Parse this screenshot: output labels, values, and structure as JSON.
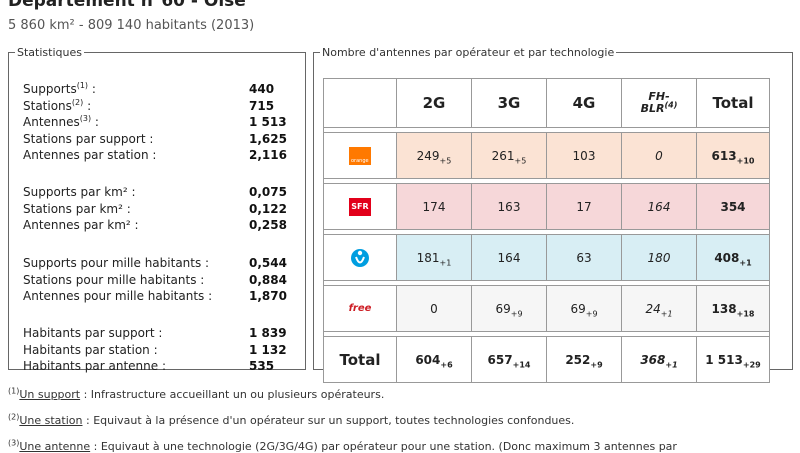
{
  "header": {
    "title": "Département n°60 - Oise",
    "subtitle": "5 860 km² - 809 140 habitants (2013)"
  },
  "stats": {
    "legend": "Statistiques",
    "groups": [
      [
        {
          "label": "Supports",
          "sup": "(1)",
          "suffix": " :",
          "value": "440"
        },
        {
          "label": "Stations",
          "sup": "(2)",
          "suffix": " :",
          "value": "715"
        },
        {
          "label": "Antennes",
          "sup": "(3)",
          "suffix": " :",
          "value": "1 513"
        },
        {
          "label": "Stations par support :",
          "sup": "",
          "suffix": "",
          "value": "1,625"
        },
        {
          "label": "Antennes par station :",
          "sup": "",
          "suffix": "",
          "value": "2,116"
        }
      ],
      [
        {
          "label": "Supports par km² :",
          "sup": "",
          "suffix": "",
          "value": "0,075"
        },
        {
          "label": "Stations par km² :",
          "sup": "",
          "suffix": "",
          "value": "0,122"
        },
        {
          "label": "Antennes par km² :",
          "sup": "",
          "suffix": "",
          "value": "0,258"
        }
      ],
      [
        {
          "label": "Supports pour mille habitants :",
          "sup": "",
          "suffix": "",
          "value": "0,544"
        },
        {
          "label": "Stations pour mille habitants :",
          "sup": "",
          "suffix": "",
          "value": "0,884"
        },
        {
          "label": "Antennes pour mille habitants :",
          "sup": "",
          "suffix": "",
          "value": "1,870"
        }
      ],
      [
        {
          "label": "Habitants par support :",
          "sup": "",
          "suffix": "",
          "value": "1 839"
        },
        {
          "label": "Habitants par station :",
          "sup": "",
          "suffix": "",
          "value": "1 132"
        },
        {
          "label": "Habitants par antenne :",
          "sup": "",
          "suffix": "",
          "value": "535"
        }
      ]
    ]
  },
  "antennas": {
    "legend": "Nombre d'antennes par opérateur et par technologie",
    "headers": {
      "c2g": "2G",
      "c3g": "3G",
      "c4g": "4G",
      "fh": "FH-",
      "fh2": "BLR",
      "fh_sup": "(4)",
      "total": "Total"
    },
    "rows": [
      {
        "op": "orange",
        "logo": "orange-logo",
        "v2g": "249",
        "v2g_sub": "+5",
        "v3g": "261",
        "v3g_sub": "+5",
        "v4g": "103",
        "v4g_sub": "",
        "fh": "0",
        "fh_sub": "",
        "total": "613",
        "total_sub": "+10"
      },
      {
        "op": "sfr",
        "logo": "sfr-logo",
        "logo_text": "SFR",
        "v2g": "174",
        "v2g_sub": "",
        "v3g": "163",
        "v3g_sub": "",
        "v4g": "17",
        "v4g_sub": "",
        "fh": "164",
        "fh_sub": "",
        "total": "354",
        "total_sub": ""
      },
      {
        "op": "bouygues",
        "logo": "bouygues-logo",
        "v2g": "181",
        "v2g_sub": "+1",
        "v3g": "164",
        "v3g_sub": "",
        "v4g": "63",
        "v4g_sub": "",
        "fh": "180",
        "fh_sub": "",
        "total": "408",
        "total_sub": "+1"
      },
      {
        "op": "free",
        "logo": "free-logo",
        "logo_text": "free",
        "v2g": "0",
        "v2g_sub": "",
        "v3g": "69",
        "v3g_sub": "+9",
        "v4g": "69",
        "v4g_sub": "+9",
        "fh": "24",
        "fh_sub": "+1",
        "total": "138",
        "total_sub": "+18"
      }
    ],
    "total_row": {
      "label": "Total",
      "v2g": "604",
      "v2g_sub": "+6",
      "v3g": "657",
      "v3g_sub": "+14",
      "v4g": "252",
      "v4g_sub": "+9",
      "fh": "368",
      "fh_sub": "+1",
      "total": "1 513",
      "total_sub": "+29"
    }
  },
  "footnotes": [
    {
      "sup": "(1)",
      "term": "Un support",
      "text": " : Infrastructure accueillant un ou plusieurs opérateurs."
    },
    {
      "sup": "(2)",
      "term": "Une station",
      "text": " : Equivaut à la présence d'un opérateur sur un support, toutes technologies confondues."
    },
    {
      "sup": "(3)",
      "term": "Une antenne",
      "text": " : Equivaut à une technologie (2G/3G/4G) par opérateur pour une station. (Donc maximum 3 antennes par"
    }
  ]
}
